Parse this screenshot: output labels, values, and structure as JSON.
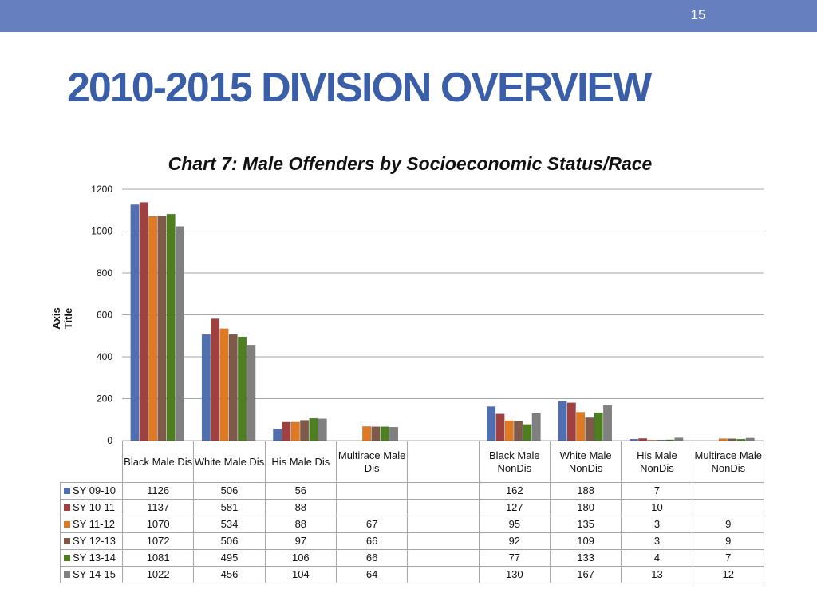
{
  "slide": {
    "page_number": "15",
    "title": "2010-2015 DIVISION OVERVIEW"
  },
  "chart_data": {
    "type": "bar",
    "title": "Chart 7: Male Offenders by Socioeconomic Status/Race",
    "ylabel": "Axis Title",
    "xlabel": "",
    "ylim": [
      0,
      1200
    ],
    "yticks": [
      "0",
      "200",
      "400",
      "600",
      "800",
      "1000",
      "1200"
    ],
    "grid": true,
    "legend": "table",
    "categories": [
      "Black Male Dis",
      "White Male Dis",
      "His Male Dis",
      "Multirace Male Dis",
      "",
      "Black Male NonDis",
      "White Male NonDis",
      "His Male NonDis",
      "Multirace Male NonDis"
    ],
    "series": [
      {
        "name": "SY 09-10",
        "color": "#4f6fb0",
        "values": [
          1126,
          506,
          56,
          null,
          null,
          162,
          188,
          7,
          null
        ]
      },
      {
        "name": "SY 10-11",
        "color": "#a04040",
        "values": [
          1137,
          581,
          88,
          null,
          null,
          127,
          180,
          10,
          null
        ]
      },
      {
        "name": "SY 11-12",
        "color": "#e07a22",
        "values": [
          1070,
          534,
          88,
          67,
          null,
          95,
          135,
          3,
          9
        ]
      },
      {
        "name": "SY 12-13",
        "color": "#7f5a4a",
        "values": [
          1072,
          506,
          97,
          66,
          null,
          92,
          109,
          3,
          9
        ]
      },
      {
        "name": "SY 13-14",
        "color": "#4d7f1f",
        "values": [
          1081,
          495,
          106,
          66,
          null,
          77,
          133,
          4,
          7
        ]
      },
      {
        "name": "SY 14-15",
        "color": "#808080",
        "values": [
          1022,
          456,
          104,
          64,
          null,
          130,
          167,
          13,
          12
        ]
      }
    ]
  }
}
